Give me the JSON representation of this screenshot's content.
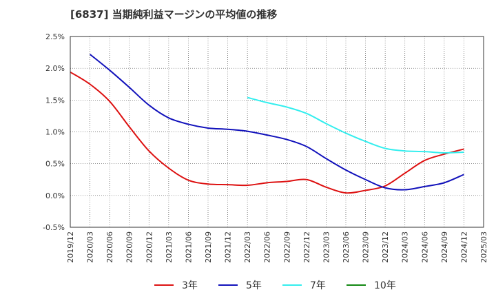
{
  "chart_data": {
    "type": "line",
    "title": "[6837]  当期純利益マージンの平均値の推移",
    "xlabel": "",
    "ylabel": "",
    "ylim": [
      -0.5,
      2.5
    ],
    "ytick_values": [
      -0.5,
      0.0,
      0.5,
      1.0,
      1.5,
      2.0,
      2.5
    ],
    "ytick_labels": [
      "-0.5%",
      "0.0%",
      "0.5%",
      "1.0%",
      "1.5%",
      "2.0%",
      "2.5%"
    ],
    "categories": [
      "2019/12",
      "2020/03",
      "2020/06",
      "2020/09",
      "2020/12",
      "2021/03",
      "2021/06",
      "2021/09",
      "2021/12",
      "2022/03",
      "2022/06",
      "2022/09",
      "2022/12",
      "2023/03",
      "2023/06",
      "2023/09",
      "2023/12",
      "2024/03",
      "2024/06",
      "2024/09",
      "2024/12",
      "2025/03"
    ],
    "grid": true,
    "legend_position": "bottom",
    "series": [
      {
        "name": "3年",
        "color": "#dd1111",
        "values": [
          1.94,
          1.75,
          1.48,
          1.08,
          0.7,
          0.43,
          0.24,
          0.18,
          0.17,
          0.16,
          0.2,
          0.22,
          0.25,
          0.13,
          0.04,
          0.08,
          0.15,
          0.35,
          0.55,
          0.65,
          0.73,
          null
        ]
      },
      {
        "name": "5年",
        "color": "#1111bb",
        "values": [
          null,
          2.22,
          1.97,
          1.7,
          1.42,
          1.22,
          1.12,
          1.06,
          1.04,
          1.01,
          0.95,
          0.88,
          0.77,
          0.58,
          0.4,
          0.25,
          0.12,
          0.09,
          0.14,
          0.2,
          0.33,
          null
        ]
      },
      {
        "name": "7年",
        "color": "#33eeee",
        "values": [
          null,
          null,
          null,
          null,
          null,
          null,
          null,
          null,
          null,
          1.54,
          1.46,
          1.39,
          1.29,
          1.13,
          0.98,
          0.85,
          0.74,
          0.7,
          0.69,
          0.67,
          0.68,
          null
        ]
      },
      {
        "name": "10年",
        "color": "#118811",
        "values": [
          null,
          null,
          null,
          null,
          null,
          null,
          null,
          null,
          null,
          null,
          null,
          null,
          null,
          null,
          null,
          null,
          null,
          null,
          null,
          null,
          null,
          null
        ]
      }
    ]
  }
}
